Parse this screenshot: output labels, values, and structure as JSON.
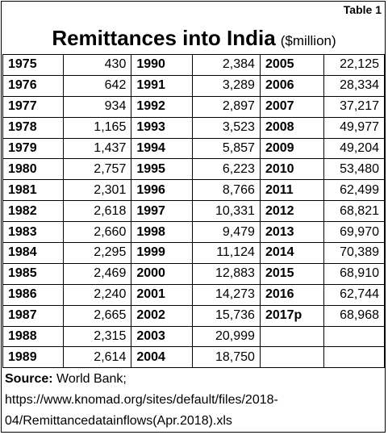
{
  "table_label": "Table 1",
  "title": "Remittances into India",
  "unit": "($million)",
  "columns": [
    [
      {
        "year": "1975",
        "value": "430"
      },
      {
        "year": "1976",
        "value": "642"
      },
      {
        "year": "1977",
        "value": "934"
      },
      {
        "year": "1978",
        "value": "1,165"
      },
      {
        "year": "1979",
        "value": "1,437"
      },
      {
        "year": "1980",
        "value": "2,757"
      },
      {
        "year": "1981",
        "value": "2,301"
      },
      {
        "year": "1982",
        "value": "2,618"
      },
      {
        "year": "1983",
        "value": "2,660"
      },
      {
        "year": "1984",
        "value": "2,295"
      },
      {
        "year": "1985",
        "value": "2,469"
      },
      {
        "year": "1986",
        "value": "2,240"
      },
      {
        "year": "1987",
        "value": "2,665"
      },
      {
        "year": "1988",
        "value": "2,315"
      },
      {
        "year": "1989",
        "value": "2,614"
      }
    ],
    [
      {
        "year": "1990",
        "value": "2,384"
      },
      {
        "year": "1991",
        "value": "3,289"
      },
      {
        "year": "1992",
        "value": "2,897"
      },
      {
        "year": "1993",
        "value": "3,523"
      },
      {
        "year": "1994",
        "value": "5,857"
      },
      {
        "year": "1995",
        "value": "6,223"
      },
      {
        "year": "1996",
        "value": "8,766"
      },
      {
        "year": "1997",
        "value": "10,331"
      },
      {
        "year": "1998",
        "value": "9,479"
      },
      {
        "year": "1999",
        "value": "11,124"
      },
      {
        "year": "2000",
        "value": "12,883"
      },
      {
        "year": "2001",
        "value": "14,273"
      },
      {
        "year": "2002",
        "value": "15,736"
      },
      {
        "year": "2003",
        "value": "20,999"
      },
      {
        "year": "2004",
        "value": "18,750"
      }
    ],
    [
      {
        "year": "2005",
        "value": "22,125"
      },
      {
        "year": "2006",
        "value": "28,334"
      },
      {
        "year": "2007",
        "value": "37,217"
      },
      {
        "year": "2008",
        "value": "49,977"
      },
      {
        "year": "2009",
        "value": "49,204"
      },
      {
        "year": "2010",
        "value": "53,480"
      },
      {
        "year": "2011",
        "value": "62,499"
      },
      {
        "year": "2012",
        "value": "68,821"
      },
      {
        "year": "2013",
        "value": "69,970"
      },
      {
        "year": "2014",
        "value": "70,389"
      },
      {
        "year": "2015",
        "value": "68,910"
      },
      {
        "year": "2016",
        "value": "62,744"
      },
      {
        "year": "2017p",
        "value": "68,968"
      },
      {
        "year": "",
        "value": ""
      },
      {
        "year": "",
        "value": ""
      }
    ]
  ],
  "source": {
    "label": "Source:",
    "text": " World Bank;",
    "url": "https://www.knomad.org/sites/default/files/2018-04/Remittancedatainflows(Apr.2018).xls"
  }
}
